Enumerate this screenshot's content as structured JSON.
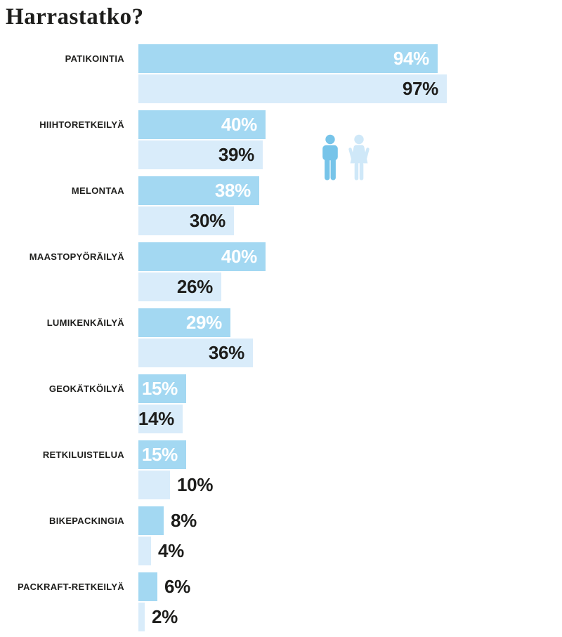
{
  "title": "Harrastatko?",
  "colors": {
    "male_bar": "#a3d8f2",
    "female_bar": "#d9ecfa",
    "male_icon": "#77c4e9",
    "female_icon": "#cfe8f8",
    "text_dark": "#1d1d1b",
    "value_on_male": "#ffffff",
    "background": "#ffffff"
  },
  "legend": {
    "male_icon": "male-figure-icon",
    "female_icon": "female-figure-icon"
  },
  "chart_data": {
    "type": "bar",
    "orientation": "horizontal",
    "title": "Harrastatko?",
    "categories": [
      "PATIKOINTIA",
      "HIIHTORETKEILYÄ",
      "MELONTAA",
      "MAASTOPYÖRÄILYÄ",
      "LUMIKENKÄILYÄ",
      "GEOKÄTKÖILYÄ",
      "RETKILUISTELUA",
      "BIKEPACKINGIA",
      "PACKRAFT-RETKEILYÄ"
    ],
    "series": [
      {
        "name": "male",
        "values": [
          94,
          40,
          38,
          40,
          29,
          15,
          15,
          8,
          6
        ]
      },
      {
        "name": "female",
        "values": [
          97,
          39,
          30,
          26,
          36,
          14,
          10,
          4,
          2
        ]
      }
    ],
    "value_suffix": "%",
    "xlim": [
      0,
      100
    ],
    "grid": false,
    "legend_position": "pictograms-right-of-second-group"
  }
}
